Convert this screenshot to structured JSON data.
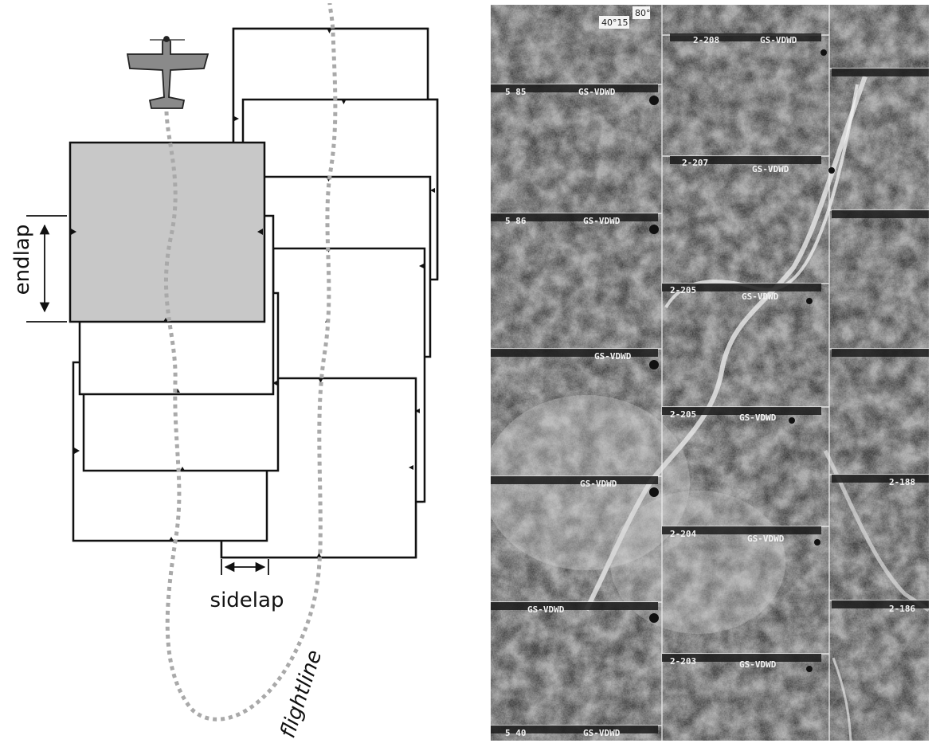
{
  "diagram": {
    "endlap_label": "endlap",
    "sidelap_label": "sidelap",
    "flightline_label": "flightline",
    "colors": {
      "shaded_photo": "#c8c8c8",
      "flight_path": "#a9a9a9",
      "frame": "#111111",
      "plane": "#8a8a8a"
    }
  },
  "mosaic": {
    "corner_lat": "40°15",
    "corner_lon": "80°",
    "frame_ids": [
      "2-208",
      "2-207",
      "2-205",
      "2-205",
      "2-204",
      "2-203"
    ],
    "left_strip_ids": [
      "5 85",
      "5 86",
      "5 40"
    ],
    "right_strip_ids": [
      "2-188",
      "2-186"
    ],
    "project_code": "GS-VDWD"
  }
}
